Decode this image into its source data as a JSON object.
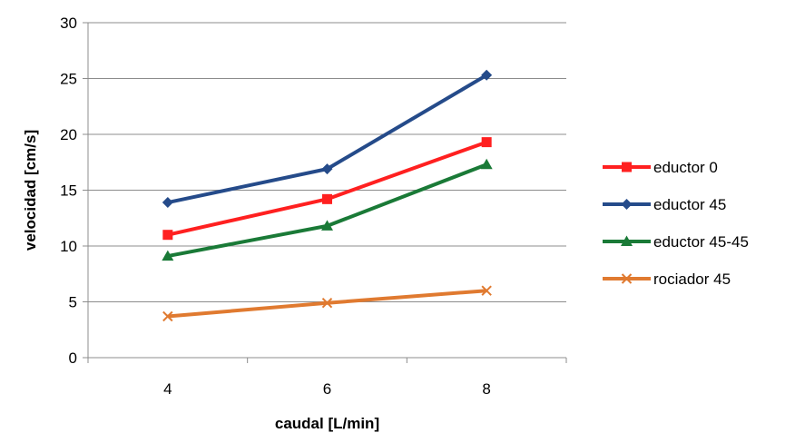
{
  "chart_data": {
    "type": "line",
    "title": "",
    "xlabel": "caudal [L/min]",
    "ylabel": "velocidad [cm/s]",
    "x": [
      4,
      6,
      8
    ],
    "xlim": [
      3,
      9
    ],
    "ylim": [
      0,
      30
    ],
    "yticks": [
      0,
      5,
      10,
      15,
      20,
      25,
      30
    ],
    "xticks": [
      4,
      6,
      8
    ],
    "grid": "horizontal",
    "legend_position": "right",
    "series": [
      {
        "name": "eductor 0",
        "values": [
          11.0,
          14.2,
          19.3
        ],
        "color": "#ff2020",
        "marker": "square"
      },
      {
        "name": "eductor 45",
        "values": [
          13.9,
          16.9,
          25.3
        ],
        "color": "#254b8a",
        "marker": "diamond"
      },
      {
        "name": "eductor 45-45",
        "values": [
          9.1,
          11.8,
          17.3
        ],
        "color": "#1a7a37",
        "marker": "triangle"
      },
      {
        "name": "rociador 45",
        "values": [
          3.7,
          4.9,
          6.0
        ],
        "color": "#e07a30",
        "marker": "x"
      }
    ]
  }
}
